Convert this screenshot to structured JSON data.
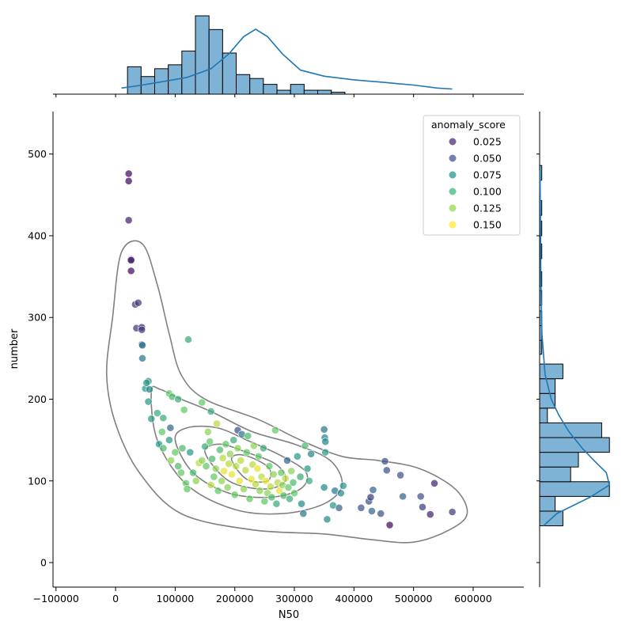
{
  "chart_data": {
    "type": "scatter",
    "xlabel": "N50",
    "ylabel": "number",
    "xlim": [
      -105000,
      685000
    ],
    "ylim": [
      -30,
      552
    ],
    "x_ticks": [
      -100000,
      0,
      100000,
      200000,
      300000,
      400000,
      500000,
      600000
    ],
    "x_tick_labels": [
      "−100000",
      "0",
      "100000",
      "200000",
      "300000",
      "400000",
      "500000",
      "600000"
    ],
    "y_ticks": [
      0,
      100,
      200,
      300,
      400,
      500
    ],
    "y_tick_labels": [
      "0",
      "100",
      "200",
      "300",
      "400",
      "500"
    ],
    "legend": {
      "title": "anomaly_score",
      "placement": "top-right",
      "entries": [
        {
          "label": "0.025",
          "color": "#482878"
        },
        {
          "label": "0.050",
          "color": "#3b528b"
        },
        {
          "label": "0.075",
          "color": "#21918c"
        },
        {
          "label": "0.100",
          "color": "#35b779"
        },
        {
          "label": "0.125",
          "color": "#90d743"
        },
        {
          "label": "0.150",
          "color": "#fde725"
        }
      ]
    },
    "colors": {
      "histogram_fill": "#7fb3d5",
      "kde_line": "#1f77b4",
      "contour": "#808080"
    },
    "points": [
      [
        22000,
        476,
        0.02
      ],
      [
        22000,
        467,
        0.02
      ],
      [
        22000,
        419,
        0.03
      ],
      [
        26000,
        371,
        0.02
      ],
      [
        26000,
        370,
        0.03
      ],
      [
        26000,
        357,
        0.02
      ],
      [
        33000,
        316,
        0.04
      ],
      [
        38000,
        318,
        0.04
      ],
      [
        35000,
        287,
        0.04
      ],
      [
        44000,
        288,
        0.03
      ],
      [
        44000,
        285,
        0.04
      ],
      [
        44000,
        267,
        0.06
      ],
      [
        45000,
        266,
        0.07
      ],
      [
        45000,
        250,
        0.07
      ],
      [
        122000,
        273,
        0.1
      ],
      [
        50000,
        213,
        0.09
      ],
      [
        55000,
        222,
        0.08
      ],
      [
        57000,
        212,
        0.08
      ],
      [
        52000,
        220,
        0.09
      ],
      [
        55000,
        197,
        0.09
      ],
      [
        60000,
        176,
        0.09
      ],
      [
        70000,
        183,
        0.1
      ],
      [
        80000,
        177,
        0.1
      ],
      [
        90000,
        207,
        0.12
      ],
      [
        95000,
        203,
        0.11
      ],
      [
        105000,
        200,
        0.1
      ],
      [
        115000,
        187,
        0.12
      ],
      [
        145000,
        196,
        0.12
      ],
      [
        160000,
        185,
        0.1
      ],
      [
        73000,
        145,
        0.09
      ],
      [
        78000,
        160,
        0.12
      ],
      [
        80000,
        140,
        0.11
      ],
      [
        90000,
        150,
        0.09
      ],
      [
        92000,
        165,
        0.06
      ],
      [
        93000,
        125,
        0.13
      ],
      [
        100000,
        135,
        0.12
      ],
      [
        105000,
        118,
        0.11
      ],
      [
        110000,
        110,
        0.12
      ],
      [
        112000,
        140,
        0.11
      ],
      [
        118000,
        97,
        0.12
      ],
      [
        120000,
        90,
        0.12
      ],
      [
        125000,
        135,
        0.09
      ],
      [
        130000,
        110,
        0.11
      ],
      [
        135000,
        100,
        0.13
      ],
      [
        140000,
        122,
        0.14
      ],
      [
        145000,
        125,
        0.13
      ],
      [
        150000,
        142,
        0.1
      ],
      [
        152000,
        118,
        0.12
      ],
      [
        155000,
        160,
        0.13
      ],
      [
        158000,
        148,
        0.12
      ],
      [
        160000,
        95,
        0.14
      ],
      [
        162000,
        127,
        0.11
      ],
      [
        165000,
        105,
        0.12
      ],
      [
        168000,
        115,
        0.13
      ],
      [
        170000,
        170,
        0.14
      ],
      [
        172000,
        88,
        0.12
      ],
      [
        175000,
        138,
        0.11
      ],
      [
        178000,
        100,
        0.13
      ],
      [
        180000,
        128,
        0.14
      ],
      [
        182000,
        112,
        0.15
      ],
      [
        185000,
        145,
        0.12
      ],
      [
        188000,
        92,
        0.13
      ],
      [
        190000,
        121,
        0.14
      ],
      [
        192000,
        133,
        0.13
      ],
      [
        195000,
        108,
        0.15
      ],
      [
        198000,
        150,
        0.1
      ],
      [
        200000,
        83,
        0.12
      ],
      [
        202000,
        118,
        0.14
      ],
      [
        205000,
        140,
        0.13
      ],
      [
        205000,
        162,
        0.05
      ],
      [
        208000,
        100,
        0.15
      ],
      [
        210000,
        125,
        0.14
      ],
      [
        212000,
        157,
        0.07
      ],
      [
        215000,
        90,
        0.13
      ],
      [
        218000,
        113,
        0.14
      ],
      [
        220000,
        135,
        0.12
      ],
      [
        222000,
        155,
        0.11
      ],
      [
        225000,
        78,
        0.12
      ],
      [
        228000,
        102,
        0.15
      ],
      [
        230000,
        120,
        0.14
      ],
      [
        232000,
        143,
        0.13
      ],
      [
        235000,
        96,
        0.14
      ],
      [
        238000,
        115,
        0.15
      ],
      [
        240000,
        130,
        0.12
      ],
      [
        242000,
        88,
        0.13
      ],
      [
        245000,
        105,
        0.14
      ],
      [
        248000,
        140,
        0.1
      ],
      [
        250000,
        75,
        0.12
      ],
      [
        252000,
        100,
        0.15
      ],
      [
        255000,
        85,
        0.13
      ],
      [
        258000,
        118,
        0.12
      ],
      [
        260000,
        93,
        0.14
      ],
      [
        262000,
        80,
        0.11
      ],
      [
        265000,
        108,
        0.13
      ],
      [
        268000,
        162,
        0.12
      ],
      [
        270000,
        72,
        0.1
      ],
      [
        272000,
        98,
        0.14
      ],
      [
        275000,
        88,
        0.15
      ],
      [
        278000,
        110,
        0.12
      ],
      [
        280000,
        95,
        0.13
      ],
      [
        282000,
        82,
        0.11
      ],
      [
        285000,
        103,
        0.14
      ],
      [
        288000,
        125,
        0.06
      ],
      [
        290000,
        92,
        0.12
      ],
      [
        292000,
        78,
        0.1
      ],
      [
        295000,
        112,
        0.13
      ],
      [
        298000,
        98,
        0.11
      ],
      [
        300000,
        85,
        0.12
      ],
      [
        305000,
        130,
        0.09
      ],
      [
        310000,
        105,
        0.1
      ],
      [
        312000,
        72,
        0.08
      ],
      [
        315000,
        60,
        0.07
      ],
      [
        318000,
        143,
        0.11
      ],
      [
        322000,
        115,
        0.09
      ],
      [
        325000,
        100,
        0.1
      ],
      [
        328000,
        133,
        0.08
      ],
      [
        350000,
        163,
        0.07
      ],
      [
        351000,
        153,
        0.08
      ],
      [
        352000,
        148,
        0.08
      ],
      [
        352000,
        135,
        0.09
      ],
      [
        350000,
        92,
        0.08
      ],
      [
        355000,
        53,
        0.08
      ],
      [
        365000,
        70,
        0.09
      ],
      [
        368000,
        88,
        0.07
      ],
      [
        375000,
        67,
        0.06
      ],
      [
        378000,
        85,
        0.08
      ],
      [
        382000,
        94,
        0.09
      ],
      [
        412000,
        67,
        0.05
      ],
      [
        425000,
        75,
        0.05
      ],
      [
        428000,
        80,
        0.04
      ],
      [
        430000,
        63,
        0.06
      ],
      [
        432000,
        89,
        0.06
      ],
      [
        445000,
        60,
        0.05
      ],
      [
        452000,
        124,
        0.05
      ],
      [
        455000,
        113,
        0.05
      ],
      [
        460000,
        46,
        0.02
      ],
      [
        478000,
        107,
        0.05
      ],
      [
        482000,
        81,
        0.06
      ],
      [
        512000,
        81,
        0.05
      ],
      [
        515000,
        68,
        0.04
      ],
      [
        528000,
        59,
        0.03
      ],
      [
        535000,
        97,
        0.03
      ],
      [
        565000,
        62,
        0.04
      ]
    ],
    "top_hist": {
      "bins_start": 20000,
      "bin_width": 22800,
      "counts": [
        14,
        9,
        13,
        15,
        22,
        40,
        33,
        21,
        10,
        8,
        5,
        2,
        5,
        2,
        2,
        1
      ],
      "count_max": 40
    },
    "right_hist": {
      "bins_start": 45,
      "bin_width": 18,
      "counts": [
        3,
        2,
        9,
        4,
        5,
        9,
        8,
        1,
        2,
        2,
        3,
        0,
        0,
        0,
        0,
        0,
        0,
        0,
        0,
        0,
        0,
        0,
        0,
        0
      ],
      "extra_bins": [
        [
          255,
          1
        ],
        [
          272,
          1
        ],
        [
          290,
          1
        ],
        [
          315,
          1
        ],
        [
          338,
          1
        ],
        [
          372,
          1
        ],
        [
          400,
          1
        ],
        [
          425,
          1
        ],
        [
          468,
          1
        ]
      ],
      "count_max": 10
    }
  }
}
